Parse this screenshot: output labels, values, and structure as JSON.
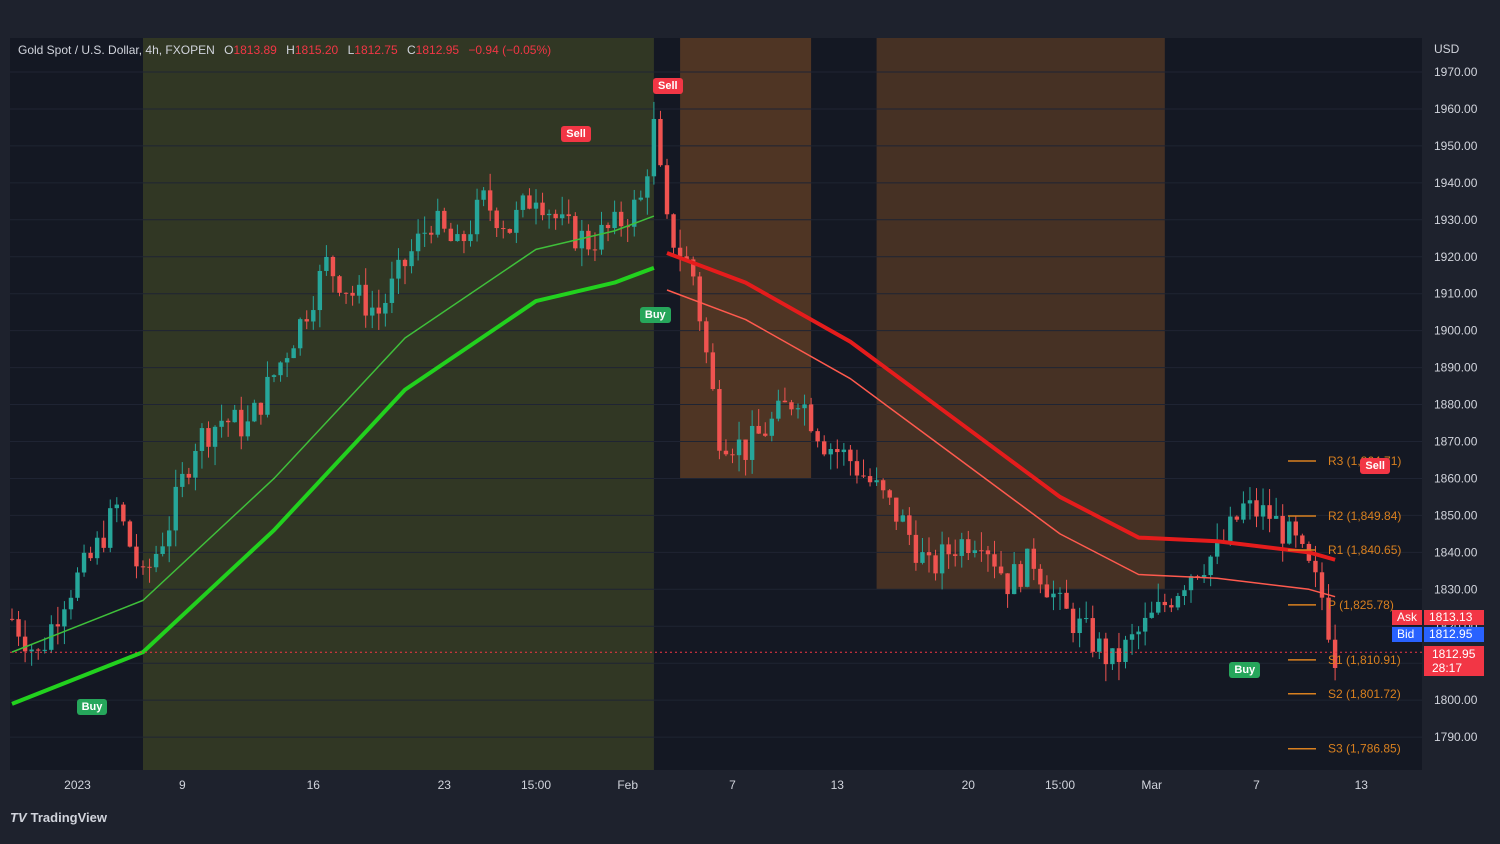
{
  "legend": {
    "symbol": "Gold Spot / U.S. Dollar, 4h, FXOPEN",
    "open_label": "O",
    "open": "1813.89",
    "high_label": "H",
    "high": "1815.20",
    "low_label": "L",
    "low": "1812.75",
    "close_label": "C",
    "close": "1812.95",
    "change": "−0.94 (−0.05%)"
  },
  "currency": "USD",
  "brand": "TradingView",
  "colors": {
    "bull": "#26a69a",
    "bear": "#ef5350",
    "green_ma": "#22d11e",
    "red_ma": "#e51c1c",
    "pivot": "#d9801f",
    "ask": "#f23645",
    "bid": "#2962ff"
  },
  "price_tags": {
    "ask_label": "Ask",
    "ask": "1813.13",
    "bid_label": "Bid",
    "bid": "1812.95",
    "last": "1812.95",
    "countdown": "28:17"
  },
  "signals": [
    {
      "type": "Buy",
      "t": 6,
      "price": 1798
    },
    {
      "type": "Sell",
      "t": 43,
      "price": 1953
    },
    {
      "type": "Buy",
      "t": 49,
      "price": 1904
    },
    {
      "type": "Sell",
      "t": 50,
      "price": 1966
    },
    {
      "type": "Buy",
      "t": 94,
      "price": 1808
    },
    {
      "type": "Sell",
      "t": 104,
      "price": 1863
    }
  ],
  "chart_data": {
    "type": "candlestick",
    "title": "Gold Spot / U.S. Dollar, 4h, FXOPEN",
    "x_ticks": [
      {
        "label": "2023",
        "t": 5
      },
      {
        "label": "9",
        "t": 13
      },
      {
        "label": "16",
        "t": 23
      },
      {
        "label": "23",
        "t": 33
      },
      {
        "label": "15:00",
        "t": 40
      },
      {
        "label": "Feb",
        "t": 47
      },
      {
        "label": "7",
        "t": 55
      },
      {
        "label": "13",
        "t": 63
      },
      {
        "label": "20",
        "t": 73
      },
      {
        "label": "15:00",
        "t": 80
      },
      {
        "label": "Mar",
        "t": 87
      },
      {
        "label": "7",
        "t": 95
      },
      {
        "label": "13",
        "t": 103
      }
    ],
    "y_axis": {
      "min": 1780,
      "max": 1975,
      "ticks": [
        1970,
        1960,
        1950,
        1940,
        1930,
        1920,
        1910,
        1900,
        1890,
        1880,
        1870,
        1860,
        1850,
        1840,
        1830,
        1820,
        1810,
        1800,
        1790
      ]
    },
    "close_path": [
      [
        0,
        1822
      ],
      [
        2,
        1812
      ],
      [
        4,
        1828
      ],
      [
        6,
        1838
      ],
      [
        8,
        1852
      ],
      [
        10,
        1832
      ],
      [
        12,
        1848
      ],
      [
        14,
        1870
      ],
      [
        16,
        1876
      ],
      [
        18,
        1874
      ],
      [
        20,
        1888
      ],
      [
        22,
        1902
      ],
      [
        24,
        1918
      ],
      [
        26,
        1910
      ],
      [
        28,
        1905
      ],
      [
        30,
        1918
      ],
      [
        32,
        1930
      ],
      [
        34,
        1922
      ],
      [
        36,
        1935
      ],
      [
        38,
        1928
      ],
      [
        40,
        1938
      ],
      [
        42,
        1928
      ],
      [
        44,
        1924
      ],
      [
        46,
        1928
      ],
      [
        48,
        1935
      ],
      [
        49,
        1955
      ],
      [
        50,
        1928
      ],
      [
        52,
        1915
      ],
      [
        54,
        1872
      ],
      [
        56,
        1868
      ],
      [
        58,
        1875
      ],
      [
        60,
        1883
      ],
      [
        62,
        1870
      ],
      [
        64,
        1865
      ],
      [
        66,
        1857
      ],
      [
        68,
        1848
      ],
      [
        70,
        1835
      ],
      [
        72,
        1842
      ],
      [
        74,
        1845
      ],
      [
        76,
        1832
      ],
      [
        78,
        1838
      ],
      [
        80,
        1825
      ],
      [
        82,
        1818
      ],
      [
        84,
        1810
      ],
      [
        86,
        1818
      ],
      [
        88,
        1826
      ],
      [
        90,
        1835
      ],
      [
        92,
        1840
      ],
      [
        94,
        1852
      ],
      [
        96,
        1850
      ],
      [
        98,
        1842
      ],
      [
        100,
        1828
      ],
      [
        101,
        1812
      ]
    ],
    "green_ema_path": [
      [
        0,
        1799
      ],
      [
        10,
        1813
      ],
      [
        20,
        1846
      ],
      [
        30,
        1884
      ],
      [
        40,
        1908
      ],
      [
        46,
        1913
      ],
      [
        49,
        1917
      ]
    ],
    "red_ema_path": [
      [
        50,
        1921
      ],
      [
        56,
        1913
      ],
      [
        64,
        1897
      ],
      [
        72,
        1876
      ],
      [
        80,
        1855
      ],
      [
        86,
        1844
      ],
      [
        92,
        1843
      ],
      [
        99,
        1840
      ],
      [
        101,
        1838
      ]
    ],
    "pivots": [
      {
        "label": "R3 (1,864.71)",
        "value": 1864.71
      },
      {
        "label": "R2 (1,849.84)",
        "value": 1849.84
      },
      {
        "label": "R1 (1,840.65)",
        "value": 1840.65
      },
      {
        "label": "P (1,825.78)",
        "value": 1825.78
      },
      {
        "label": "S1 (1,810.91)",
        "value": 1810.91
      },
      {
        "label": "S2 (1,801.72)",
        "value": 1801.72
      },
      {
        "label": "S3 (1,786.85)",
        "value": 1786.85
      }
    ],
    "last_price": 1812.95
  }
}
